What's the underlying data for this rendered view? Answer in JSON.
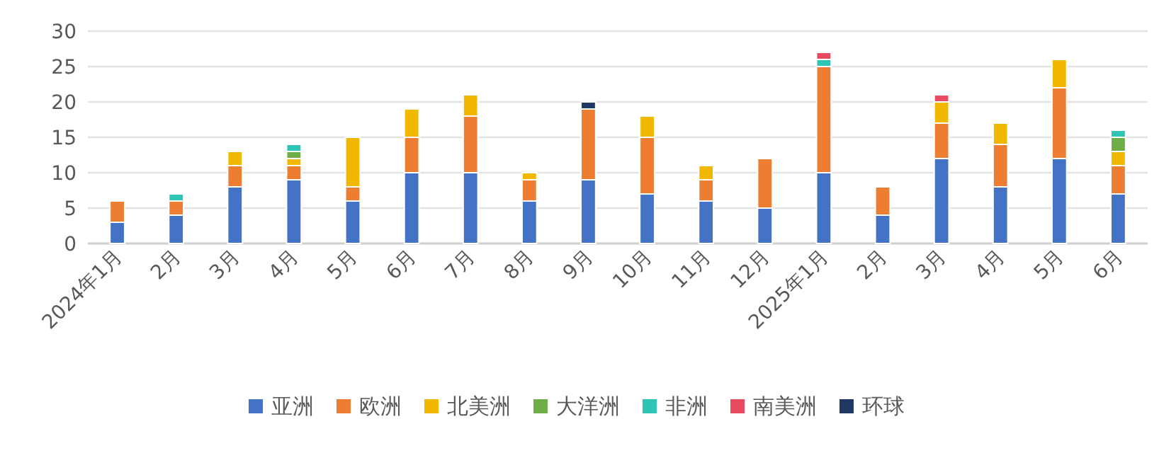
{
  "chart_data": {
    "type": "bar",
    "stacked": true,
    "categories": [
      "2024年1月",
      "2月",
      "3月",
      "4月",
      "5月",
      "6月",
      "7月",
      "8月",
      "9月",
      "10月",
      "11月",
      "12月",
      "2025年1月",
      "2月",
      "3月",
      "4月",
      "5月",
      "6月"
    ],
    "series": [
      {
        "name": "亚洲",
        "color": "#4472c4",
        "values": [
          3,
          4,
          8,
          9,
          6,
          10,
          10,
          6,
          9,
          7,
          6,
          5,
          10,
          4,
          12,
          8,
          12,
          7
        ]
      },
      {
        "name": "欧洲",
        "color": "#ed7d31",
        "values": [
          3,
          2,
          3,
          2,
          2,
          5,
          8,
          3,
          10,
          8,
          3,
          7,
          15,
          4,
          5,
          6,
          10,
          4
        ]
      },
      {
        "name": "北美洲",
        "color": "#f2b800",
        "values": [
          null,
          null,
          2,
          1,
          7,
          4,
          3,
          1,
          null,
          3,
          2,
          null,
          null,
          null,
          3,
          3,
          4,
          2
        ]
      },
      {
        "name": "大洋洲",
        "color": "#70ad47",
        "values": [
          null,
          null,
          null,
          1,
          null,
          null,
          null,
          null,
          null,
          null,
          null,
          null,
          null,
          null,
          null,
          null,
          null,
          2
        ]
      },
      {
        "name": "非洲",
        "color": "#2ec4b6",
        "values": [
          null,
          1,
          null,
          1,
          null,
          null,
          null,
          null,
          null,
          null,
          null,
          null,
          1,
          null,
          null,
          null,
          null,
          1
        ]
      },
      {
        "name": "南美洲",
        "color": "#e84a5f",
        "values": [
          null,
          null,
          null,
          null,
          null,
          null,
          null,
          null,
          null,
          null,
          null,
          null,
          1,
          null,
          1,
          null,
          null,
          null
        ]
      },
      {
        "name": "环球",
        "color": "#203864",
        "values": [
          null,
          null,
          null,
          null,
          null,
          null,
          null,
          null,
          1,
          null,
          null,
          null,
          null,
          null,
          null,
          null,
          null,
          null
        ]
      }
    ],
    "ylim": [
      0,
      30
    ],
    "yticks": [
      0,
      5,
      10,
      15,
      20,
      25,
      30
    ],
    "grid": "y",
    "legend": "bottom"
  }
}
